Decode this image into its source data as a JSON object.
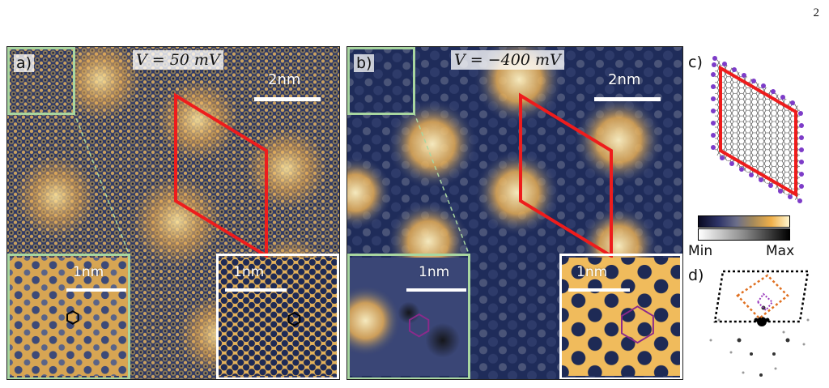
{
  "page_number": "2",
  "panel_a": {
    "tag": "a)",
    "voltage": "V = 50 mV",
    "scale_main": "2nm",
    "scale_inset_left": "1nm",
    "scale_inset_right": "1nm"
  },
  "panel_b": {
    "tag": "b)",
    "voltage": "V = −400 mV",
    "scale_main": "2nm",
    "scale_inset_left": "1nm",
    "scale_inset_right": "1nm"
  },
  "panel_c": {
    "tag": "c)"
  },
  "colorbar": {
    "min_label": "Min",
    "max_label": "Max"
  },
  "panel_d": {
    "tag": "d)"
  },
  "colors": {
    "moire_cell": "#ee1c1c",
    "inset_frame": "#a8d6a0",
    "hexagon_a": "#000000",
    "hexagon_b": "#8b2a8b",
    "lattice_node": "#7d3cc8",
    "fft_outer_cell": "#000000",
    "fft_mid_cell": "#e07020",
    "fft_inner_cell": "#9b3dbd"
  }
}
